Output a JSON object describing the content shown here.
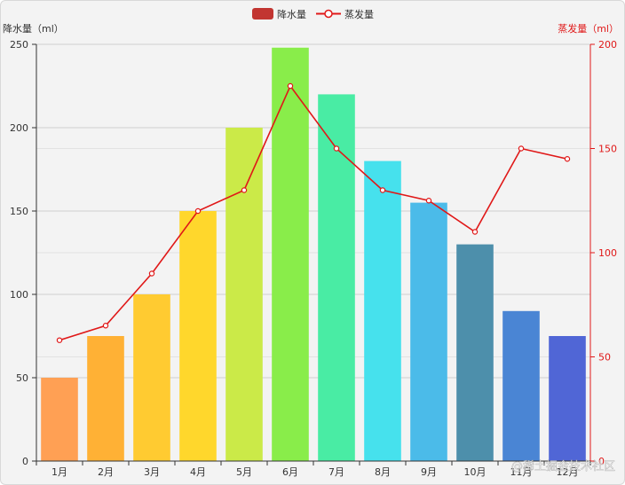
{
  "chart_data": {
    "type": "bar",
    "categories": [
      "1月",
      "2月",
      "3月",
      "4月",
      "5月",
      "6月",
      "7月",
      "8月",
      "9月",
      "10月",
      "11月",
      "12月"
    ],
    "series": [
      {
        "name": "降水量",
        "chart": "bar",
        "axis": "left",
        "values": [
          50,
          75,
          100,
          150,
          200,
          248,
          220,
          180,
          155,
          130,
          90,
          75
        ],
        "colors": [
          "#ffa054",
          "#ffb135",
          "#ffcb31",
          "#ffd72c",
          "#cbea48",
          "#89ed4a",
          "#49eca4",
          "#46e1ed",
          "#4bbbe9",
          "#4d8fab",
          "#4a85d4",
          "#5066d6"
        ]
      },
      {
        "name": "蒸发量",
        "chart": "line",
        "axis": "right",
        "values": [
          58,
          65,
          90,
          120,
          130,
          180,
          150,
          130,
          125,
          110,
          150,
          145
        ],
        "color": "#e01818"
      }
    ],
    "yaxis_left": {
      "label": "降水量（ml）",
      "range": [
        0,
        250
      ],
      "ticks": [
        0,
        50,
        100,
        150,
        200,
        250
      ],
      "color": "#333333"
    },
    "yaxis_right": {
      "label": "蒸发量（ml）",
      "range": [
        0,
        200
      ],
      "ticks": [
        0,
        50,
        100,
        150,
        200
      ],
      "color": "#e01818"
    },
    "legend": {
      "placement": "top-center",
      "bar_color": "#c23531"
    },
    "watermark": "@稀土掘金技术社区"
  }
}
